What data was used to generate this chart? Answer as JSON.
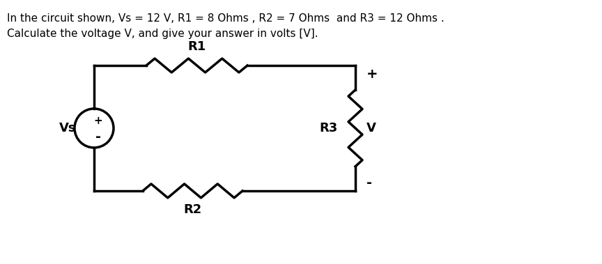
{
  "title_line1": "In the circuit shown, Vs = 12 V, R1 = 8 Ohms , R2 = 7 Ohms  and R3 = 12 Ohms .",
  "title_line2": "Calculate the voltage V, and give your answer in volts [V].",
  "bg_color": "#ffffff",
  "text_color": "#000000",
  "line_color": "#000000",
  "line_width": 2.5,
  "circuit": {
    "vs_label": "Vs",
    "vs_plus": "+",
    "vs_minus": "-",
    "r1_label": "R1",
    "r2_label": "R2",
    "r3_label": "R3",
    "v_label": "V",
    "v_plus": "+",
    "v_minus": "-"
  }
}
